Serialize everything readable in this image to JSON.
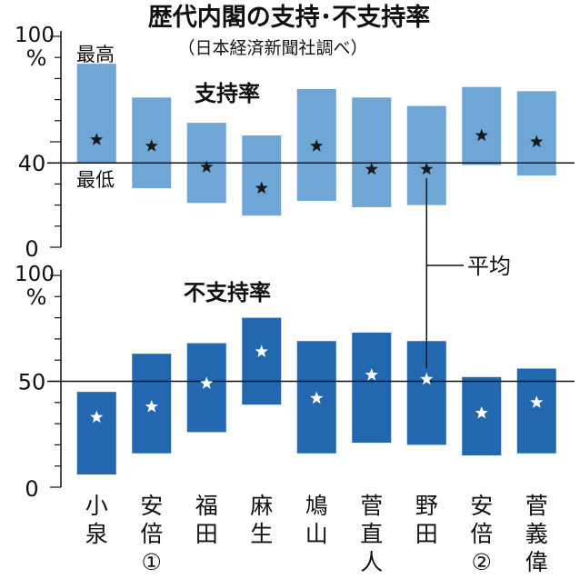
{
  "title": "歴代内閣の支持･不支持率",
  "subtitle": "（日本経済新聞社調べ）",
  "colors": {
    "support_bar": "#6fa6d6",
    "disapproval_bar": "#2367b0",
    "support_star": "#1a1a1a",
    "disapproval_star": "#ffffff",
    "axis": "#111111"
  },
  "callout": {
    "average": "平均"
  },
  "categories": [
    [
      "小",
      "泉"
    ],
    [
      "安",
      "倍",
      "①"
    ],
    [
      "福",
      "田"
    ],
    [
      "麻",
      "生"
    ],
    [
      "鳩",
      "山"
    ],
    [
      "菅",
      "直",
      "人"
    ],
    [
      "野",
      "田"
    ],
    [
      "安",
      "倍",
      "②"
    ],
    [
      "菅",
      "義",
      "偉"
    ]
  ],
  "chart_data": [
    {
      "type": "bar",
      "title": "支持率",
      "ylim": [
        0,
        100
      ],
      "y_ticks": [
        "0",
        "40",
        "100"
      ],
      "y_unit": "%",
      "reference_line": 40,
      "reference_label": "40",
      "labels": {
        "max": "最高",
        "min": "最低"
      },
      "series": [
        {
          "name": "最高",
          "values": [
            87,
            71,
            59,
            53,
            75,
            71,
            67,
            76,
            74
          ]
        },
        {
          "name": "最低",
          "values": [
            40,
            28,
            21,
            15,
            22,
            19,
            20,
            39,
            34
          ]
        },
        {
          "name": "平均",
          "values": [
            51,
            48,
            38,
            28,
            48,
            37,
            37,
            53,
            50
          ]
        }
      ]
    },
    {
      "type": "bar",
      "title": "不支持率",
      "ylim": [
        0,
        100
      ],
      "y_ticks": [
        "0",
        "50",
        "100"
      ],
      "y_unit": "%",
      "reference_line": 50,
      "reference_label": "50",
      "series": [
        {
          "name": "最高",
          "values": [
            45,
            63,
            68,
            80,
            69,
            73,
            69,
            52,
            56
          ]
        },
        {
          "name": "最低",
          "values": [
            6,
            16,
            26,
            39,
            16,
            21,
            20,
            15,
            16
          ]
        },
        {
          "name": "平均",
          "values": [
            33,
            38,
            49,
            64,
            42,
            53,
            51,
            35,
            40
          ]
        }
      ]
    }
  ]
}
